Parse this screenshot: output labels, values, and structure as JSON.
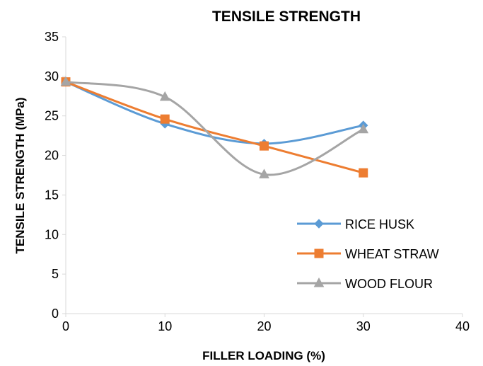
{
  "chart_data": {
    "type": "line",
    "title": "TENSILE STRENGTH",
    "xlabel": "FILLER LOADING (%)",
    "ylabel": "TENSILE STRENGTH (MPa)",
    "xlim": [
      0,
      40
    ],
    "ylim": [
      0,
      35
    ],
    "x_ticks": [
      0,
      10,
      20,
      30,
      40
    ],
    "y_ticks": [
      0,
      5,
      10,
      15,
      20,
      25,
      30,
      35
    ],
    "x": [
      0,
      10,
      20,
      30
    ],
    "smooth": true,
    "grid": false,
    "legend_position": "right",
    "series": [
      {
        "name": "RICE HUSK",
        "values": [
          29.3,
          24.0,
          21.5,
          23.8
        ],
        "color": "#5B9BD5",
        "marker": "diamond"
      },
      {
        "name": "WHEAT STRAW",
        "values": [
          29.3,
          24.6,
          21.2,
          17.8
        ],
        "color": "#ED7D31",
        "marker": "square"
      },
      {
        "name": "WOOD FLOUR",
        "values": [
          29.3,
          27.4,
          17.6,
          23.3
        ],
        "color": "#A5A5A5",
        "marker": "triangle"
      }
    ]
  }
}
